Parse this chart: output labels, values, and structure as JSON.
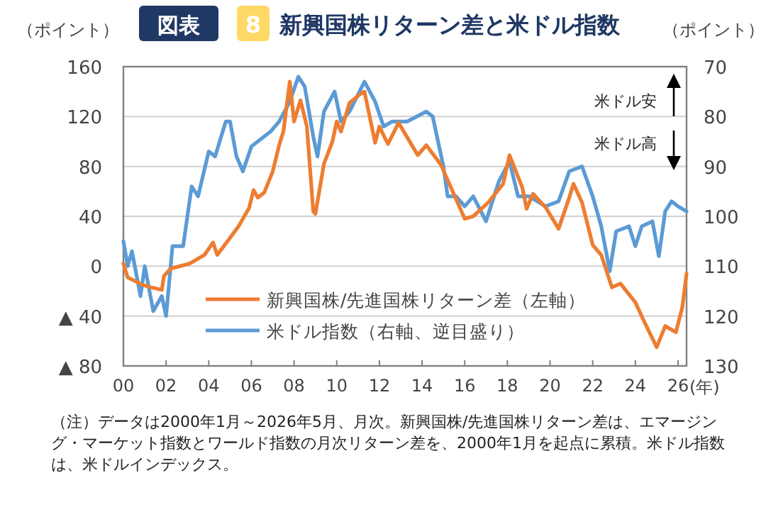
{
  "chart_data": {
    "type": "line",
    "title": "新興国株リターン差と米ドル指数",
    "ylabel": "（ポイント）",
    "y2label": "（ポイント）",
    "xlabel": "(年)",
    "annotations": [
      "図表",
      "8",
      "米ドル安",
      "米ドル高",
      "（注）データは2000年1月～2026年5月、月次。新興国株/先進国株リターン差は、エマージング・マーケット指数とワールド指数の月次リターン差を、2000年1月を起点に累積。米ドル指数は、米ドルインデックス。"
    ],
    "xlim": [
      2000,
      2026.4
    ],
    "xticks": [
      {
        "value": 2000,
        "label": "00"
      },
      {
        "value": 2002,
        "label": "02"
      },
      {
        "value": 2004,
        "label": "04"
      },
      {
        "value": 2006,
        "label": "06"
      },
      {
        "value": 2008,
        "label": "08"
      },
      {
        "value": 2010,
        "label": "10"
      },
      {
        "value": 2012,
        "label": "12"
      },
      {
        "value": 2014,
        "label": "14"
      },
      {
        "value": 2016,
        "label": "16"
      },
      {
        "value": 2018,
        "label": "18"
      },
      {
        "value": 2020,
        "label": "20"
      },
      {
        "value": 2022,
        "label": "22"
      },
      {
        "value": 2024,
        "label": "24"
      },
      {
        "value": 2026,
        "label": "26"
      }
    ],
    "ylim": [
      -80,
      160
    ],
    "yticks": [
      160,
      120,
      80,
      40,
      0,
      {
        "value": -40,
        "label": "▲ 40"
      },
      {
        "value": -80,
        "label": "▲ 80"
      }
    ],
    "y2lim": [
      130,
      70
    ],
    "y2ticks": [
      70,
      80,
      90,
      100,
      110,
      120,
      130
    ],
    "grid": "y",
    "legend": "bottom",
    "series": [
      {
        "name": "新興国株/先進国株リターン差（左軸）",
        "color": "#ed7d31",
        "x": [
          2000.0,
          2000.2,
          2000.9,
          2001.3,
          2001.8,
          2001.9,
          2002.2,
          2003.1,
          2003.3,
          2003.8,
          2004.2,
          2004.4,
          2005.1,
          2005.4,
          2005.9,
          2006.1,
          2006.3,
          2006.6,
          2007.0,
          2007.3,
          2007.5,
          2007.8,
          2008.0,
          2008.3,
          2008.6,
          2008.9,
          2009.0,
          2009.4,
          2009.8,
          2010.0,
          2010.2,
          2010.6,
          2011.1,
          2011.3,
          2011.8,
          2012.0,
          2012.4,
          2012.9,
          2013.8,
          2014.2,
          2014.9,
          2015.2,
          2016.0,
          2016.4,
          2017.1,
          2017.8,
          2018.1,
          2018.7,
          2018.9,
          2019.2,
          2019.8,
          2020.4,
          2020.9,
          2021.1,
          2021.5,
          2022.0,
          2022.4,
          2022.9,
          2023.3,
          2024.0,
          2024.4,
          2025.0,
          2025.4,
          2025.9,
          2026.2,
          2026.4
        ],
        "values": [
          2,
          -9,
          -15,
          -17,
          -19,
          -8,
          -2,
          2,
          4,
          9,
          19,
          9,
          25,
          32,
          47,
          61,
          55,
          59,
          76,
          97,
          108,
          148,
          116,
          133,
          112,
          44,
          42,
          82,
          100,
          116,
          108,
          131,
          138,
          140,
          99,
          112,
          98,
          115,
          89,
          97,
          81,
          69,
          38,
          40,
          51,
          66,
          89,
          63,
          46,
          58,
          47,
          30,
          55,
          66,
          51,
          17,
          9,
          -17,
          -14,
          -29,
          -44,
          -65,
          -48,
          -53,
          -33,
          -6
        ]
      },
      {
        "name": "米ドル指数（右軸、逆目盛り）",
        "color": "#5b9bd5",
        "axis": "y2",
        "x": [
          2000.0,
          2000.2,
          2000.4,
          2000.8,
          2001.0,
          2001.4,
          2001.8,
          2002.0,
          2002.3,
          2002.8,
          2003.0,
          2003.2,
          2003.5,
          2004.0,
          2004.3,
          2004.8,
          2005.0,
          2005.3,
          2005.6,
          2006.0,
          2006.3,
          2006.9,
          2007.3,
          2007.8,
          2008.2,
          2008.5,
          2008.9,
          2009.1,
          2009.4,
          2009.9,
          2010.2,
          2010.6,
          2011.3,
          2011.8,
          2012.2,
          2012.6,
          2013.3,
          2014.2,
          2014.5,
          2015.0,
          2015.2,
          2015.6,
          2016.0,
          2016.4,
          2017.0,
          2017.6,
          2018.1,
          2018.5,
          2019.0,
          2019.8,
          2020.4,
          2020.9,
          2021.5,
          2022.0,
          2022.4,
          2022.8,
          2023.1,
          2023.7,
          2024.0,
          2024.3,
          2024.8,
          2025.1,
          2025.4,
          2025.7,
          2026.0,
          2026.4
        ],
        "values": [
          105,
          110,
          107,
          116,
          110,
          119,
          116,
          120,
          106,
          106,
          100,
          94,
          96,
          87,
          88,
          81,
          81,
          88,
          91,
          86,
          85,
          83,
          81,
          77,
          72,
          74,
          84,
          88,
          79,
          75,
          81,
          79,
          73,
          77,
          82,
          81,
          81,
          79,
          80,
          90,
          96,
          96,
          98,
          96,
          101,
          93,
          89,
          96,
          96,
          98,
          97,
          91,
          90,
          96,
          102,
          111,
          103,
          102,
          106,
          102,
          101,
          108,
          99,
          97,
          98,
          99
        ]
      }
    ]
  }
}
